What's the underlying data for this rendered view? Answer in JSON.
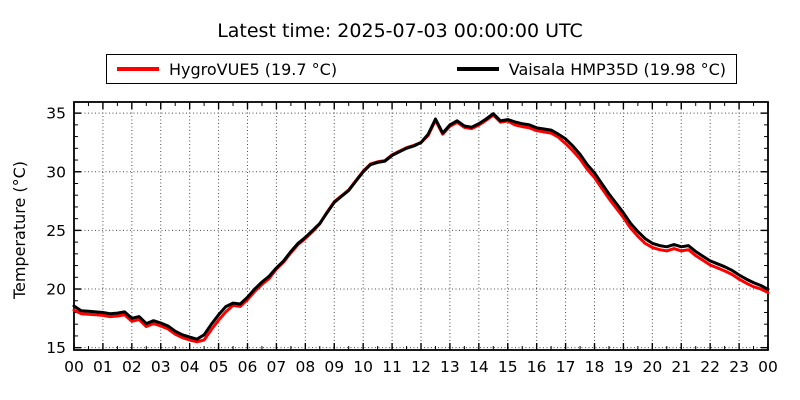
{
  "title": "Latest time: 2025-07-03 00:00:00 UTC",
  "legend": {
    "items": [
      {
        "label": "HygroVUE5 (19.7 °C)",
        "color": "#ff0000"
      },
      {
        "label": "Vaisala HMP35D (19.98 °C)",
        "color": "#000000"
      }
    ]
  },
  "y_axis": {
    "label": "Temperature (°C)",
    "ticks": [
      15,
      20,
      25,
      30,
      35
    ],
    "minor_step": 1,
    "min": 14.8,
    "max": 35.95
  },
  "x_axis": {
    "tick_labels": [
      "00",
      "01",
      "02",
      "03",
      "04",
      "05",
      "06",
      "07",
      "08",
      "09",
      "10",
      "11",
      "12",
      "13",
      "14",
      "15",
      "16",
      "17",
      "18",
      "19",
      "20",
      "21",
      "22",
      "23",
      "00"
    ],
    "minor_step": 0.5,
    "min": 0,
    "max": 24
  },
  "chart_data": {
    "type": "line",
    "title": "Latest time: 2025-07-03 00:00:00 UTC",
    "xlabel": "",
    "ylabel": "Temperature (°C)",
    "xlim": [
      0,
      24
    ],
    "ylim": [
      14.8,
      35.95
    ],
    "grid": "dotted",
    "legend_position": "top-outside",
    "x_start": 0,
    "x_step": 0.25,
    "series": [
      {
        "name": "HygroVUE5",
        "color": "#ff0000",
        "latest_value": 19.7,
        "values": [
          18.2,
          17.9,
          17.85,
          17.8,
          17.75,
          17.65,
          17.7,
          17.8,
          17.25,
          17.4,
          16.8,
          17.05,
          16.85,
          16.6,
          16.15,
          15.85,
          15.65,
          15.5,
          15.65,
          16.55,
          17.35,
          18.05,
          18.6,
          18.52,
          19.1,
          19.8,
          20.4,
          20.9,
          21.7,
          22.3,
          23.1,
          23.8,
          24.3,
          24.9,
          25.55,
          26.55,
          27.45,
          27.95,
          28.45,
          29.25,
          30.05,
          30.65,
          30.85,
          30.95,
          31.45,
          31.75,
          32.05,
          32.25,
          32.5,
          33.1,
          34.4,
          33.2,
          33.88,
          34.22,
          33.78,
          33.68,
          33.98,
          34.38,
          34.83,
          34.23,
          34.33,
          34.0,
          33.85,
          33.75,
          33.5,
          33.4,
          33.3,
          32.95,
          32.4,
          31.8,
          31.1,
          30.2,
          29.5,
          28.6,
          27.7,
          26.9,
          26.1,
          25.2,
          24.5,
          23.9,
          23.55,
          23.35,
          23.25,
          23.45,
          23.25,
          23.35,
          22.85,
          22.45,
          22.05,
          21.8,
          21.55,
          21.25,
          20.85,
          20.5,
          20.2,
          20.0,
          19.7
        ]
      },
      {
        "name": "Vaisala HMP35D",
        "color": "#000000",
        "latest_value": 19.98,
        "values": [
          18.55,
          18.15,
          18.1,
          18.05,
          18.0,
          17.9,
          17.95,
          18.05,
          17.5,
          17.65,
          17.05,
          17.3,
          17.1,
          16.85,
          16.4,
          16.1,
          15.9,
          15.72,
          16.1,
          17.0,
          17.8,
          18.5,
          18.8,
          18.72,
          19.3,
          20.0,
          20.6,
          21.1,
          21.8,
          22.4,
          23.2,
          23.9,
          24.4,
          25.0,
          25.6,
          26.5,
          27.4,
          27.9,
          28.4,
          29.2,
          30.0,
          30.6,
          30.8,
          30.9,
          31.4,
          31.7,
          32.0,
          32.2,
          32.5,
          33.2,
          34.5,
          33.3,
          34.0,
          34.35,
          33.9,
          33.8,
          34.1,
          34.5,
          34.95,
          34.35,
          34.45,
          34.25,
          34.1,
          34.0,
          33.75,
          33.65,
          33.55,
          33.2,
          32.8,
          32.2,
          31.5,
          30.6,
          29.9,
          29.0,
          28.1,
          27.3,
          26.5,
          25.6,
          24.9,
          24.3,
          23.9,
          23.7,
          23.6,
          23.8,
          23.6,
          23.7,
          23.2,
          22.8,
          22.4,
          22.15,
          21.9,
          21.6,
          21.2,
          20.85,
          20.55,
          20.3,
          19.98
        ]
      }
    ]
  }
}
